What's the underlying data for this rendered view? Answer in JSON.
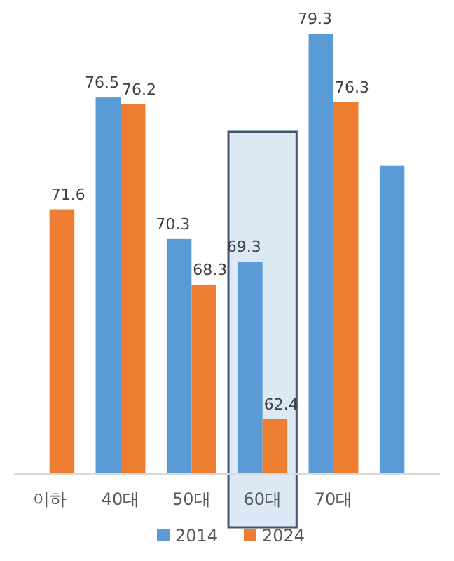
{
  "chart_data": {
    "type": "bar",
    "categories": [
      "이하",
      "40대",
      "50대",
      "60대",
      "70대",
      null
    ],
    "series": [
      {
        "name": "2014",
        "color": "#5b9bd5",
        "values": [
          null,
          76.5,
          70.3,
          69.3,
          79.3,
          73.5
        ],
        "value_labels": [
          null,
          "76.5",
          "70.3",
          "69.3",
          "79.3",
          null
        ]
      },
      {
        "name": "2024",
        "color": "#ed7d31",
        "values": [
          71.6,
          76.2,
          68.3,
          62.4,
          76.3,
          null
        ],
        "value_labels": [
          "71.6",
          "76.2",
          "68.3",
          "62.4",
          "76.3",
          null
        ]
      }
    ],
    "ylim": [
      60,
      79.3
    ],
    "tick_labels": "x",
    "legend": "bottom",
    "bands": [
      {
        "axis": "x",
        "from": "60대",
        "to": "60대",
        "color": "#dde8f5"
      }
    ]
  }
}
